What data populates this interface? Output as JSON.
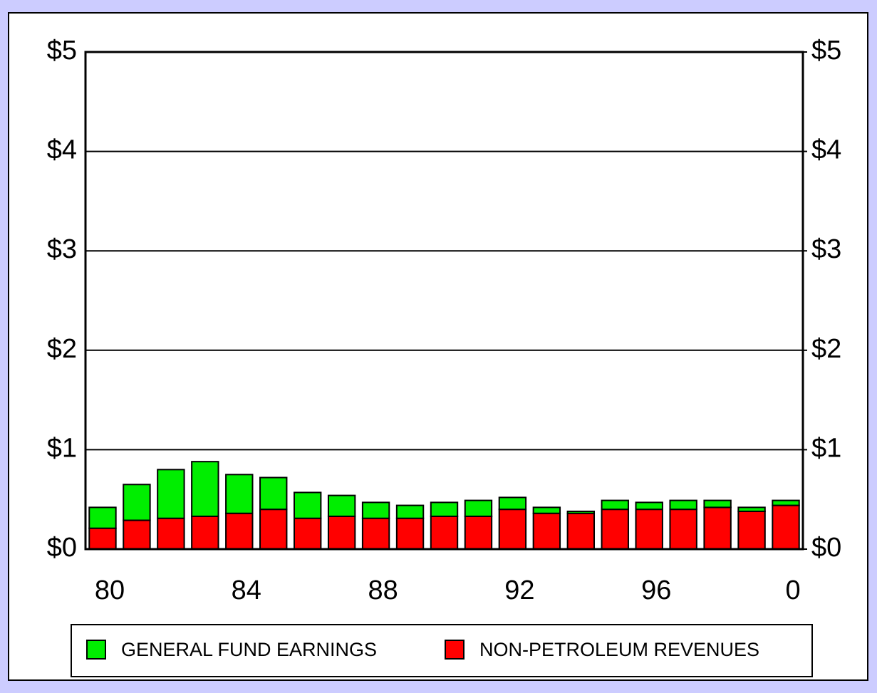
{
  "chart_data": {
    "type": "stacked_bar",
    "categories": [
      "80",
      null,
      null,
      null,
      "84",
      null,
      null,
      null,
      "88",
      null,
      null,
      null,
      "92",
      null,
      null,
      null,
      "96",
      null,
      null,
      null,
      "0"
    ],
    "series": [
      {
        "name": "GENERAL FUND EARNINGS",
        "color": "#00ee00",
        "values": [
          0.21,
          0.36,
          0.49,
          0.55,
          0.39,
          0.32,
          0.26,
          0.21,
          0.16,
          0.13,
          0.14,
          0.16,
          0.12,
          0.06,
          0.02,
          0.09,
          0.07,
          0.09,
          0.07,
          0.04,
          0.05
        ]
      },
      {
        "name": "NON-PETROLEUM REVENUES",
        "color": "#ff0000",
        "values": [
          0.21,
          0.29,
          0.31,
          0.33,
          0.36,
          0.4,
          0.31,
          0.33,
          0.31,
          0.31,
          0.33,
          0.33,
          0.4,
          0.36,
          0.36,
          0.4,
          0.4,
          0.4,
          0.42,
          0.38,
          0.44
        ]
      }
    ],
    "ylim": [
      0,
      5
    ],
    "yticks": [
      {
        "value": 0,
        "label": "$0"
      },
      {
        "value": 1,
        "label": "$1"
      },
      {
        "value": 2,
        "label": "$2"
      },
      {
        "value": 3,
        "label": "$3"
      },
      {
        "value": 4,
        "label": "$4"
      },
      {
        "value": 5,
        "label": "$5"
      }
    ],
    "y2lim": [
      0,
      5
    ],
    "y2ticks": [
      {
        "value": 0,
        "label": "$0"
      },
      {
        "value": 1,
        "label": "$1"
      },
      {
        "value": 2,
        "label": "$2"
      },
      {
        "value": 3,
        "label": "$3"
      },
      {
        "value": 4,
        "label": "$4"
      },
      {
        "value": 5,
        "label": "$5"
      }
    ],
    "grid": true,
    "legend": "bottom"
  }
}
